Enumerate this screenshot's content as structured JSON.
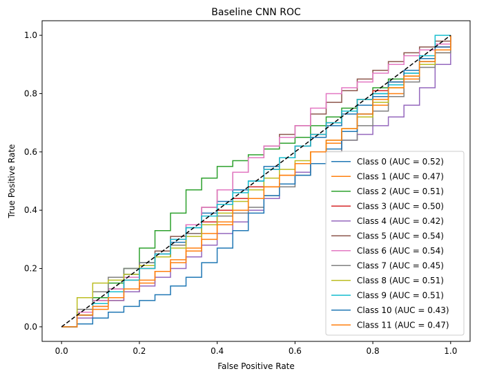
{
  "chart_data": {
    "type": "line",
    "title": "Baseline CNN ROC",
    "xlabel": "False Positive Rate",
    "ylabel": "True Positive Rate",
    "xlim": [
      -0.05,
      1.05
    ],
    "ylim": [
      -0.05,
      1.05
    ],
    "xticks": [
      "0.0",
      "0.2",
      "0.4",
      "0.6",
      "0.8",
      "1.0"
    ],
    "yticks": [
      "0.0",
      "0.2",
      "0.4",
      "0.6",
      "0.8",
      "1.0"
    ],
    "grid": false,
    "legend_position": "lower right",
    "diagonal": {
      "x": [
        0,
        1
      ],
      "y": [
        0,
        1
      ],
      "color": "#000000",
      "style": "dashed"
    },
    "series": [
      {
        "name": "Class 0 (AUC = 0.52)",
        "color": "#1f77b4",
        "x": [
          0,
          0.04,
          0.08,
          0.12,
          0.16,
          0.2,
          0.24,
          0.28,
          0.32,
          0.36,
          0.4,
          0.44,
          0.48,
          0.52,
          0.56,
          0.6,
          0.64,
          0.68,
          0.72,
          0.76,
          0.8,
          0.84,
          0.88,
          0.92,
          0.96,
          1
        ],
        "y": [
          0,
          0.05,
          0.09,
          0.12,
          0.18,
          0.22,
          0.25,
          0.29,
          0.34,
          0.39,
          0.43,
          0.47,
          0.5,
          0.55,
          0.58,
          0.62,
          0.65,
          0.69,
          0.73,
          0.76,
          0.8,
          0.84,
          0.87,
          0.91,
          0.95,
          1
        ]
      },
      {
        "name": "Class 1 (AUC = 0.47)",
        "color": "#ff7f0e",
        "x": [
          0,
          0.04,
          0.08,
          0.12,
          0.16,
          0.2,
          0.24,
          0.28,
          0.32,
          0.36,
          0.4,
          0.44,
          0.48,
          0.52,
          0.56,
          0.6,
          0.64,
          0.68,
          0.72,
          0.76,
          0.8,
          0.84,
          0.88,
          0.92,
          0.96,
          1
        ],
        "y": [
          0,
          0.03,
          0.06,
          0.09,
          0.12,
          0.15,
          0.19,
          0.23,
          0.27,
          0.32,
          0.36,
          0.4,
          0.44,
          0.48,
          0.52,
          0.56,
          0.6,
          0.63,
          0.67,
          0.72,
          0.76,
          0.8,
          0.85,
          0.9,
          0.94,
          1
        ]
      },
      {
        "name": "Class 2 (AUC = 0.51)",
        "color": "#2ca02c",
        "x": [
          0,
          0.04,
          0.08,
          0.12,
          0.16,
          0.2,
          0.24,
          0.28,
          0.32,
          0.36,
          0.4,
          0.44,
          0.48,
          0.52,
          0.56,
          0.6,
          0.64,
          0.68,
          0.72,
          0.76,
          0.8,
          0.84,
          0.88,
          0.92,
          0.96,
          1
        ],
        "y": [
          0,
          0.05,
          0.1,
          0.15,
          0.2,
          0.27,
          0.33,
          0.39,
          0.47,
          0.51,
          0.55,
          0.57,
          0.59,
          0.61,
          0.63,
          0.65,
          0.69,
          0.72,
          0.75,
          0.78,
          0.82,
          0.85,
          0.88,
          0.92,
          0.95,
          1
        ]
      },
      {
        "name": "Class 3 (AUC = 0.50)",
        "color": "#d62728",
        "x": [
          0,
          0.04,
          0.08,
          0.12,
          0.16,
          0.2,
          0.24,
          0.28,
          0.32,
          0.36,
          0.4,
          0.44,
          0.48,
          0.52,
          0.56,
          0.6,
          0.64,
          0.68,
          0.72,
          0.76,
          0.8,
          0.84,
          0.88,
          0.92,
          0.96,
          1
        ],
        "y": [
          0,
          0.04,
          0.08,
          0.12,
          0.16,
          0.2,
          0.24,
          0.28,
          0.32,
          0.36,
          0.4,
          0.44,
          0.48,
          0.54,
          0.58,
          0.62,
          0.66,
          0.7,
          0.74,
          0.78,
          0.81,
          0.84,
          0.88,
          0.92,
          0.96,
          1
        ]
      },
      {
        "name": "Class 4 (AUC = 0.42)",
        "color": "#9467bd",
        "x": [
          0,
          0.04,
          0.08,
          0.12,
          0.16,
          0.2,
          0.24,
          0.28,
          0.32,
          0.36,
          0.4,
          0.44,
          0.48,
          0.52,
          0.56,
          0.6,
          0.64,
          0.68,
          0.72,
          0.76,
          0.8,
          0.84,
          0.88,
          0.92,
          0.96,
          1
        ],
        "y": [
          0,
          0.03,
          0.07,
          0.09,
          0.12,
          0.14,
          0.17,
          0.2,
          0.24,
          0.28,
          0.32,
          0.36,
          0.4,
          0.44,
          0.49,
          0.53,
          0.56,
          0.6,
          0.64,
          0.66,
          0.69,
          0.72,
          0.76,
          0.82,
          0.9,
          1
        ]
      },
      {
        "name": "Class 5 (AUC = 0.54)",
        "color": "#8c564b",
        "x": [
          0,
          0.04,
          0.08,
          0.12,
          0.16,
          0.2,
          0.24,
          0.28,
          0.32,
          0.36,
          0.4,
          0.44,
          0.48,
          0.52,
          0.56,
          0.6,
          0.64,
          0.68,
          0.72,
          0.76,
          0.8,
          0.84,
          0.88,
          0.92,
          0.96,
          1
        ],
        "y": [
          0,
          0.04,
          0.09,
          0.13,
          0.17,
          0.21,
          0.26,
          0.31,
          0.35,
          0.41,
          0.47,
          0.53,
          0.58,
          0.62,
          0.66,
          0.69,
          0.73,
          0.77,
          0.81,
          0.85,
          0.88,
          0.91,
          0.94,
          0.96,
          0.98,
          1
        ]
      },
      {
        "name": "Class 6 (AUC = 0.54)",
        "color": "#e377c2",
        "x": [
          0,
          0.04,
          0.08,
          0.12,
          0.16,
          0.2,
          0.24,
          0.28,
          0.32,
          0.36,
          0.4,
          0.44,
          0.48,
          0.52,
          0.56,
          0.6,
          0.64,
          0.68,
          0.72,
          0.76,
          0.8,
          0.84,
          0.88,
          0.92,
          0.96,
          1
        ],
        "y": [
          0,
          0.05,
          0.09,
          0.13,
          0.17,
          0.21,
          0.25,
          0.3,
          0.35,
          0.41,
          0.47,
          0.53,
          0.58,
          0.62,
          0.65,
          0.69,
          0.75,
          0.8,
          0.82,
          0.84,
          0.87,
          0.9,
          0.93,
          0.95,
          0.97,
          1
        ]
      },
      {
        "name": "Class 7 (AUC = 0.45)",
        "color": "#7f7f7f",
        "x": [
          0,
          0.04,
          0.08,
          0.12,
          0.16,
          0.2,
          0.24,
          0.28,
          0.32,
          0.36,
          0.4,
          0.44,
          0.48,
          0.52,
          0.56,
          0.6,
          0.64,
          0.68,
          0.72,
          0.76,
          0.8,
          0.84,
          0.88,
          0.92,
          0.96,
          1
        ],
        "y": [
          0,
          0.06,
          0.12,
          0.17,
          0.2,
          0.22,
          0.24,
          0.28,
          0.32,
          0.35,
          0.38,
          0.39,
          0.41,
          0.45,
          0.48,
          0.52,
          0.56,
          0.6,
          0.64,
          0.69,
          0.74,
          0.79,
          0.84,
          0.89,
          0.94,
          1
        ]
      },
      {
        "name": "Class 8 (AUC = 0.51)",
        "color": "#bcbd22",
        "x": [
          0,
          0.04,
          0.08,
          0.12,
          0.16,
          0.2,
          0.24,
          0.28,
          0.32,
          0.36,
          0.4,
          0.44,
          0.48,
          0.52,
          0.56,
          0.6,
          0.64,
          0.68,
          0.72,
          0.76,
          0.8,
          0.84,
          0.88,
          0.92,
          0.96,
          1
        ],
        "y": [
          0,
          0.1,
          0.15,
          0.16,
          0.18,
          0.21,
          0.24,
          0.27,
          0.31,
          0.35,
          0.39,
          0.43,
          0.47,
          0.51,
          0.54,
          0.57,
          0.6,
          0.64,
          0.68,
          0.72,
          0.77,
          0.82,
          0.86,
          0.9,
          0.95,
          1
        ]
      },
      {
        "name": "Class 9 (AUC = 0.51)",
        "color": "#17becf",
        "x": [
          0,
          0.04,
          0.08,
          0.12,
          0.16,
          0.2,
          0.24,
          0.28,
          0.32,
          0.36,
          0.4,
          0.44,
          0.48,
          0.52,
          0.56,
          0.6,
          0.64,
          0.68,
          0.72,
          0.76,
          0.8,
          0.84,
          0.88,
          0.92,
          0.96,
          1
        ],
        "y": [
          0,
          0.04,
          0.08,
          0.12,
          0.16,
          0.2,
          0.25,
          0.3,
          0.34,
          0.38,
          0.42,
          0.46,
          0.5,
          0.54,
          0.58,
          0.62,
          0.66,
          0.7,
          0.74,
          0.78,
          0.8,
          0.83,
          0.87,
          0.93,
          1,
          1
        ]
      },
      {
        "name": "Class 10 (AUC = 0.43)",
        "color": "#1f77b4",
        "x": [
          0,
          0.04,
          0.08,
          0.12,
          0.16,
          0.2,
          0.24,
          0.28,
          0.32,
          0.36,
          0.4,
          0.44,
          0.48,
          0.52,
          0.56,
          0.6,
          0.64,
          0.68,
          0.72,
          0.76,
          0.8,
          0.84,
          0.88,
          0.92,
          0.96,
          1
        ],
        "y": [
          0,
          0.01,
          0.03,
          0.05,
          0.07,
          0.09,
          0.11,
          0.14,
          0.17,
          0.22,
          0.27,
          0.33,
          0.39,
          0.45,
          0.49,
          0.52,
          0.56,
          0.61,
          0.67,
          0.73,
          0.79,
          0.84,
          0.88,
          0.92,
          0.96,
          1
        ]
      },
      {
        "name": "Class 11 (AUC = 0.47)",
        "color": "#ff7f0e",
        "x": [
          0,
          0.04,
          0.08,
          0.12,
          0.16,
          0.2,
          0.24,
          0.28,
          0.32,
          0.36,
          0.4,
          0.44,
          0.48,
          0.52,
          0.56,
          0.6,
          0.64,
          0.68,
          0.72,
          0.76,
          0.8,
          0.84,
          0.88,
          0.92,
          0.96,
          1
        ],
        "y": [
          0,
          0.04,
          0.07,
          0.1,
          0.13,
          0.16,
          0.19,
          0.22,
          0.26,
          0.3,
          0.35,
          0.4,
          0.44,
          0.48,
          0.52,
          0.56,
          0.6,
          0.64,
          0.68,
          0.73,
          0.78,
          0.82,
          0.86,
          0.91,
          0.95,
          1
        ]
      }
    ]
  }
}
